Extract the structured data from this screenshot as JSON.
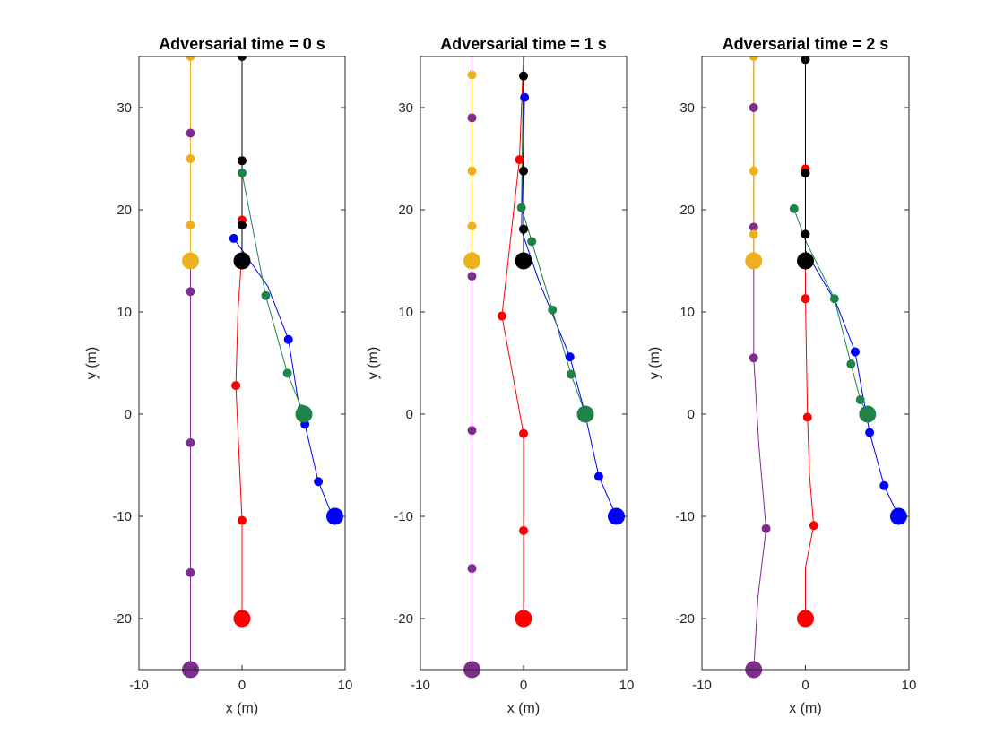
{
  "chart_data": [
    {
      "type": "scatter",
      "title": "Adversarial time = 0 s",
      "xlabel": "x (m)",
      "ylabel": "y (m)",
      "xlim": [
        -10,
        10
      ],
      "ylim": [
        -25,
        35
      ],
      "xticks": [
        -10,
        0,
        10
      ],
      "yticks": [
        -20,
        -10,
        0,
        10,
        20,
        30
      ],
      "grid": false,
      "legend": "none",
      "series": [
        {
          "color": "#7E2F8E",
          "start": [
            -5,
            -25
          ],
          "path": [
            [
              -5,
              -25
            ],
            [
              -5,
              -15.5
            ],
            [
              -5,
              -2.8
            ],
            [
              -5,
              12
            ],
            [
              -5,
              27.5
            ],
            [
              -5,
              35
            ]
          ],
          "points": [
            [
              -5,
              -15.5
            ],
            [
              -5,
              -2.8
            ],
            [
              -5,
              12
            ],
            [
              -5,
              27.5
            ]
          ]
        },
        {
          "color": "#EDB120",
          "start": [
            -5,
            15
          ],
          "path": [
            [
              -5,
              15
            ],
            [
              -5,
              18.5
            ],
            [
              -5,
              25
            ],
            [
              -5,
              35
            ]
          ],
          "points": [
            [
              -5,
              18.5
            ],
            [
              -5,
              25
            ],
            [
              -5,
              35
            ]
          ]
        },
        {
          "color": "#FF0000",
          "start": [
            0,
            -20
          ],
          "path": [
            [
              0,
              -20
            ],
            [
              0,
              -10.4
            ],
            [
              -0.6,
              2.8
            ],
            [
              -0.4,
              10
            ],
            [
              0,
              16
            ],
            [
              0,
              19
            ]
          ],
          "points": [
            [
              0,
              -10.4
            ],
            [
              -0.6,
              2.8
            ],
            [
              0,
              19
            ]
          ]
        },
        {
          "color": "#0000FF",
          "start": [
            9,
            -10
          ],
          "path": [
            [
              9,
              -10
            ],
            [
              8.7,
              -9.8
            ],
            [
              7.4,
              -6.6
            ],
            [
              6.1,
              -1
            ],
            [
              5.4,
              1.6
            ],
            [
              4.5,
              7.3
            ],
            [
              2.5,
              12.5
            ],
            [
              -0.8,
              17.2
            ]
          ],
          "points": [
            [
              8.7,
              -9.8
            ],
            [
              7.4,
              -6.6
            ],
            [
              6.1,
              -1
            ],
            [
              4.5,
              7.3
            ],
            [
              -0.8,
              17.2
            ]
          ]
        },
        {
          "color": "#1E8449",
          "start": [
            6,
            0
          ],
          "path": [
            [
              6,
              0
            ],
            [
              5.8,
              0.5
            ],
            [
              4.4,
              4
            ],
            [
              2.3,
              11.6
            ],
            [
              0,
              23.6
            ],
            [
              0,
              35
            ]
          ],
          "points": [
            [
              5.8,
              0.5
            ],
            [
              4.4,
              4
            ],
            [
              2.3,
              11.6
            ],
            [
              0,
              23.6
            ]
          ]
        },
        {
          "color": "#000000",
          "start": [
            0,
            15
          ],
          "path": [
            [
              0,
              15
            ],
            [
              0,
              18.5
            ],
            [
              0,
              24.8
            ],
            [
              0,
              35
            ]
          ],
          "points": [
            [
              0,
              18.5
            ],
            [
              0,
              24.8
            ],
            [
              0,
              35
            ]
          ]
        }
      ]
    },
    {
      "type": "scatter",
      "title": "Adversarial time = 1 s",
      "xlabel": "x (m)",
      "ylabel": "y (m)",
      "xlim": [
        -10,
        10
      ],
      "ylim": [
        -25,
        35
      ],
      "xticks": [
        -10,
        0,
        10
      ],
      "yticks": [
        -20,
        -10,
        0,
        10,
        20,
        30
      ],
      "grid": false,
      "legend": "none",
      "series": [
        {
          "color": "#7E2F8E",
          "start": [
            -5,
            -25
          ],
          "path": [
            [
              -5,
              -25
            ],
            [
              -5,
              -15.1
            ],
            [
              -5,
              -1.6
            ],
            [
              -5,
              13.5
            ],
            [
              -5,
              29
            ],
            [
              -5,
              35
            ]
          ],
          "points": [
            [
              -5,
              -15.1
            ],
            [
              -5,
              -1.6
            ],
            [
              -5,
              13.5
            ],
            [
              -5,
              29
            ]
          ]
        },
        {
          "color": "#EDB120",
          "start": [
            -5,
            15
          ],
          "path": [
            [
              -5,
              15
            ],
            [
              -5,
              18.4
            ],
            [
              -5,
              23.8
            ],
            [
              -5,
              33.2
            ]
          ],
          "points": [
            [
              -5,
              18.4
            ],
            [
              -5,
              23.8
            ],
            [
              -5,
              33.2
            ]
          ]
        },
        {
          "color": "#FF0000",
          "start": [
            0,
            -20
          ],
          "path": [
            [
              0,
              -20
            ],
            [
              0,
              -11.4
            ],
            [
              0,
              -1.9
            ],
            [
              -2.1,
              9.6
            ],
            [
              -0.4,
              24.9
            ],
            [
              0,
              35
            ]
          ],
          "points": [
            [
              0,
              -11.4
            ],
            [
              0,
              -1.9
            ],
            [
              -2.1,
              9.6
            ],
            [
              -0.4,
              24.9
            ]
          ]
        },
        {
          "color": "#0000FF",
          "start": [
            9,
            -10
          ],
          "path": [
            [
              9,
              -10
            ],
            [
              7.3,
              -6.1
            ],
            [
              5.9,
              0.3
            ],
            [
              4.5,
              5.6
            ],
            [
              1.5,
              13
            ],
            [
              -0.2,
              18
            ],
            [
              0.1,
              31
            ]
          ],
          "points": [
            [
              7.3,
              -6.1
            ],
            [
              4.5,
              5.6
            ],
            [
              0.1,
              31
            ]
          ]
        },
        {
          "color": "#1E8449",
          "start": [
            6,
            0
          ],
          "path": [
            [
              6,
              0
            ],
            [
              4.6,
              3.9
            ],
            [
              2.8,
              10.2
            ],
            [
              0.8,
              16.9
            ],
            [
              -0.2,
              20.2
            ],
            [
              0,
              35
            ]
          ],
          "points": [
            [
              4.6,
              3.9
            ],
            [
              2.8,
              10.2
            ],
            [
              0.8,
              16.9
            ],
            [
              -0.2,
              20.2
            ]
          ]
        },
        {
          "color": "#000000",
          "start": [
            0,
            15
          ],
          "path": [
            [
              0,
              15
            ],
            [
              0,
              18.1
            ],
            [
              0,
              23.8
            ],
            [
              0,
              33.1
            ]
          ],
          "points": [
            [
              0,
              18.1
            ],
            [
              0,
              23.8
            ],
            [
              0,
              33.1
            ]
          ]
        }
      ]
    },
    {
      "type": "scatter",
      "title": "Adversarial time = 2 s",
      "xlabel": "x (m)",
      "ylabel": "y (m)",
      "xlim": [
        -10,
        10
      ],
      "ylim": [
        -25,
        35
      ],
      "xticks": [
        -10,
        0,
        10
      ],
      "yticks": [
        -20,
        -10,
        0,
        10,
        20,
        30
      ],
      "grid": false,
      "legend": "none",
      "series": [
        {
          "color": "#7E2F8E",
          "start": [
            -5,
            -25
          ],
          "path": [
            [
              -5,
              -25
            ],
            [
              -4.6,
              -18
            ],
            [
              -3.8,
              -11.2
            ],
            [
              -4.5,
              -3
            ],
            [
              -5,
              5.5
            ],
            [
              -5,
              18.3
            ],
            [
              -5,
              30
            ],
            [
              -5,
              35
            ]
          ],
          "points": [
            [
              -3.8,
              -11.2
            ],
            [
              -5,
              5.5
            ],
            [
              -5,
              18.3
            ],
            [
              -5,
              30
            ]
          ]
        },
        {
          "color": "#EDB120",
          "start": [
            -5,
            15
          ],
          "path": [
            [
              -5,
              15
            ],
            [
              -5,
              17.6
            ],
            [
              -5,
              23.8
            ],
            [
              -5,
              35
            ]
          ],
          "points": [
            [
              -5,
              17.6
            ],
            [
              -5,
              23.8
            ],
            [
              -5,
              35
            ]
          ]
        },
        {
          "color": "#FF0000",
          "start": [
            0,
            -20
          ],
          "path": [
            [
              0,
              -20
            ],
            [
              0,
              -15
            ],
            [
              0.8,
              -10.9
            ],
            [
              0.4,
              -6
            ],
            [
              0.2,
              -0.3
            ],
            [
              0,
              11.3
            ],
            [
              0,
              24
            ]
          ],
          "points": [
            [
              0.8,
              -10.9
            ],
            [
              0.2,
              -0.3
            ],
            [
              0,
              11.3
            ],
            [
              0,
              24
            ]
          ]
        },
        {
          "color": "#0000FF",
          "start": [
            9,
            -10
          ],
          "path": [
            [
              9,
              -10
            ],
            [
              7.6,
              -7
            ],
            [
              6.2,
              -1.8
            ],
            [
              5.6,
              1.5
            ],
            [
              4.8,
              6.1
            ],
            [
              3,
              10.8
            ],
            [
              0,
              16
            ]
          ],
          "points": [
            [
              7.6,
              -7
            ],
            [
              6.2,
              -1.8
            ],
            [
              4.8,
              6.1
            ]
          ]
        },
        {
          "color": "#1E8449",
          "start": [
            6,
            0
          ],
          "path": [
            [
              6,
              0
            ],
            [
              5.3,
              1.4
            ],
            [
              4.4,
              4.9
            ],
            [
              2.8,
              11.3
            ],
            [
              0,
              17
            ],
            [
              -1.1,
              20.1
            ]
          ],
          "points": [
            [
              5.3,
              1.4
            ],
            [
              4.4,
              4.9
            ],
            [
              2.8,
              11.3
            ],
            [
              -1.1,
              20.1
            ]
          ]
        },
        {
          "color": "#000000",
          "start": [
            0,
            15
          ],
          "path": [
            [
              0,
              15
            ],
            [
              0,
              17.6
            ],
            [
              0,
              23.6
            ],
            [
              0,
              34.7
            ]
          ],
          "points": [
            [
              0,
              17.6
            ],
            [
              0,
              23.6
            ],
            [
              0,
              34.7
            ]
          ]
        }
      ]
    }
  ]
}
